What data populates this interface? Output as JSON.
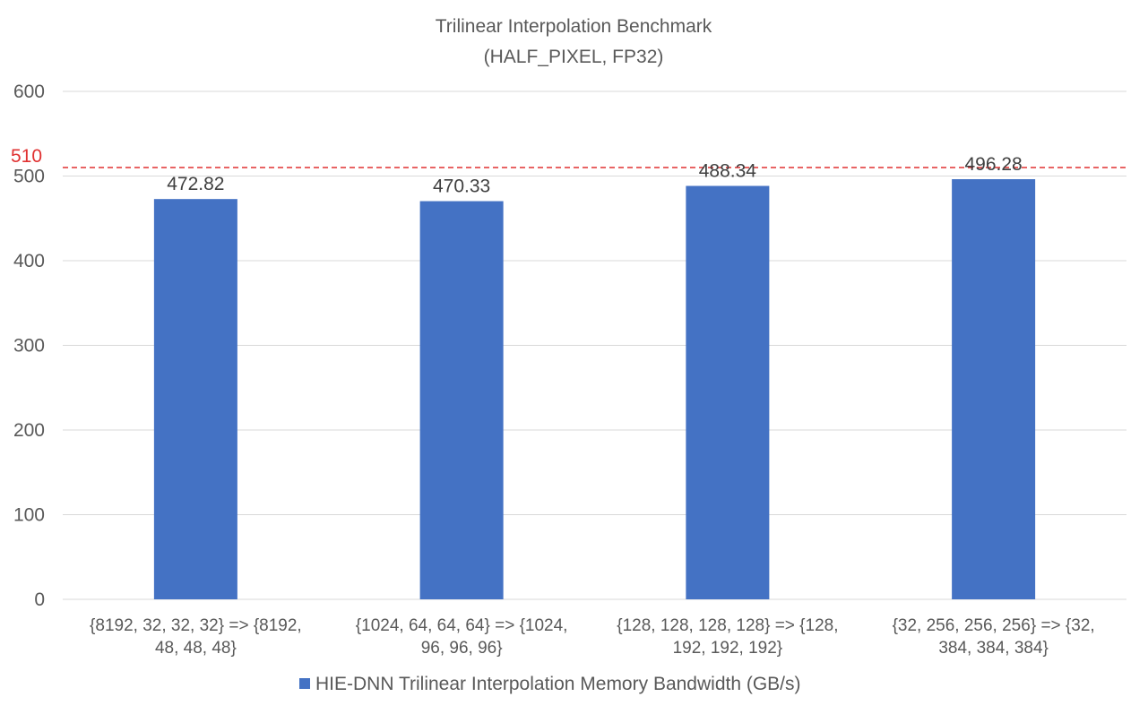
{
  "chart_data": {
    "type": "bar",
    "title": "Trilinear Interpolation Benchmark",
    "subtitle": "(HALF_PIXEL, FP32)",
    "xlabel": "",
    "ylabel": "",
    "ylim": [
      0,
      600
    ],
    "yticks": [
      0,
      100,
      200,
      300,
      400,
      500,
      600
    ],
    "grid": true,
    "legend_position": "bottom",
    "categories": [
      [
        "{8192, 32, 32, 32} => {8192,",
        "48, 48, 48}"
      ],
      [
        "{1024, 64, 64, 64} => {1024,",
        "96, 96, 96}"
      ],
      [
        "{128, 128, 128, 128} => {128,",
        "192, 192, 192}"
      ],
      [
        "{32, 256, 256, 256} => {32,",
        "384, 384, 384}"
      ]
    ],
    "series": [
      {
        "name": "HIE-DNN Trilinear Interpolation Memory Bandwidth (GB/s)",
        "values": [
          472.82,
          470.33,
          488.34,
          496.28
        ],
        "data_labels": [
          "472.82",
          "470.33",
          "488.34",
          "496.28"
        ],
        "color": "#4472C4"
      }
    ],
    "reference_line": {
      "value": 510,
      "label": "510",
      "color": "#E03131",
      "style": "dashed"
    }
  },
  "colors": {
    "gridline": "#D9D9D9",
    "axis_text": "#595959",
    "title_text": "#595959"
  }
}
